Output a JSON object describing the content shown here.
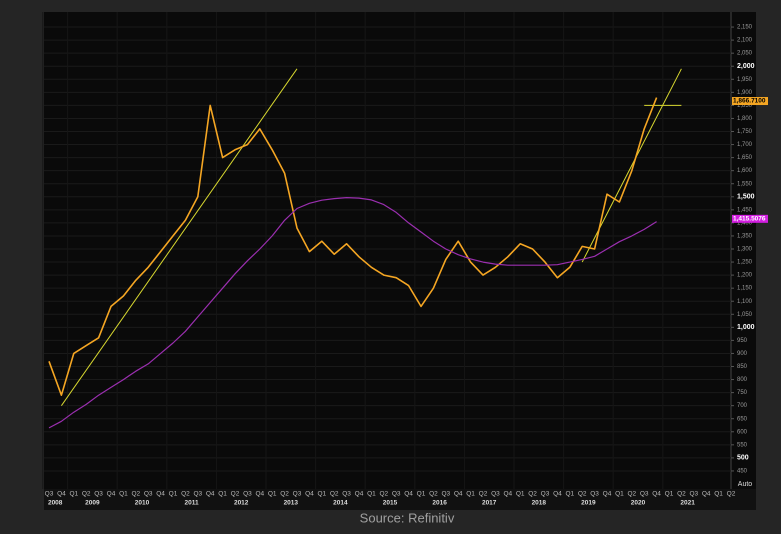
{
  "chart_data": {
    "type": "line",
    "source": "Source: Refinitiv",
    "axis_mode": "Auto",
    "categories": [
      "Q3",
      "Q4",
      "Q1",
      "Q2",
      "Q3",
      "Q4",
      "Q1",
      "Q2",
      "Q3",
      "Q4",
      "Q1",
      "Q2",
      "Q3",
      "Q4",
      "Q1",
      "Q2",
      "Q3",
      "Q4",
      "Q1",
      "Q2",
      "Q3",
      "Q4",
      "Q1",
      "Q2",
      "Q3",
      "Q4",
      "Q1",
      "Q2",
      "Q3",
      "Q4",
      "Q1",
      "Q2",
      "Q3",
      "Q4",
      "Q1",
      "Q2",
      "Q3",
      "Q4",
      "Q1",
      "Q2",
      "Q3",
      "Q4",
      "Q1",
      "Q2",
      "Q3",
      "Q4",
      "Q1",
      "Q2",
      "Q3",
      "Q4",
      "Q1",
      "Q2",
      "Q3",
      "Q4",
      "Q1",
      "Q2"
    ],
    "years": [
      "2008",
      "2009",
      "2010",
      "2011",
      "2012",
      "2013",
      "2014",
      "2015",
      "2016",
      "2017",
      "2018",
      "2019",
      "2020",
      "2021"
    ],
    "series": [
      {
        "color": "#f5a623",
        "width": 1.6,
        "label_fill": "#f5a623",
        "label_text": "#000000",
        "values": [
          870,
          740,
          900,
          930,
          960,
          1080,
          1120,
          1180,
          1230,
          1290,
          1350,
          1410,
          1500,
          1850,
          1650,
          1680,
          1700,
          1760,
          1680,
          1590,
          1380,
          1290,
          1330,
          1280,
          1320,
          1270,
          1230,
          1200,
          1190,
          1160,
          1080,
          1150,
          1260,
          1330,
          1250,
          1200,
          1230,
          1270,
          1320,
          1300,
          1250,
          1190,
          1230,
          1310,
          1300,
          1510,
          1480,
          1600,
          1760,
          1880,
          null,
          null,
          null,
          null,
          null,
          null
        ],
        "last_value": 1866.71,
        "last_value_label": "1,866.7100"
      },
      {
        "color": "#9b2fb0",
        "width": 1.2,
        "label_fill": "#d21ee0",
        "label_text": "#ffffff",
        "values": [
          615,
          640,
          675,
          705,
          740,
          770,
          800,
          832,
          860,
          900,
          940,
          985,
          1040,
          1095,
          1150,
          1205,
          1255,
          1300,
          1350,
          1410,
          1455,
          1475,
          1487,
          1493,
          1497,
          1495,
          1488,
          1470,
          1440,
          1400,
          1365,
          1330,
          1300,
          1278,
          1262,
          1250,
          1242,
          1238,
          1238,
          1238,
          1238,
          1240,
          1250,
          1260,
          1272,
          1300,
          1328,
          1350,
          1375,
          1405,
          null,
          null,
          null,
          null,
          null,
          null
        ],
        "last_value": 1415.5076,
        "last_value_label": "1,415.5076"
      }
    ],
    "trendlines": [
      {
        "color": "#d8d830",
        "x": [
          1,
          20
        ],
        "y": [
          700,
          1990
        ]
      },
      {
        "color": "#d8d830",
        "x": [
          43,
          51
        ],
        "y": [
          1250,
          1990
        ]
      },
      {
        "color": "#d8d830",
        "x": [
          48,
          51
        ],
        "y": [
          1850,
          1850
        ]
      }
    ],
    "ylim": [
      400,
      2200
    ],
    "yticks": [
      450,
      500,
      550,
      600,
      650,
      700,
      750,
      800,
      850,
      900,
      950,
      {
        "value": 1000,
        "label": "1,000"
      },
      {
        "value": 1050,
        "label": "1,050"
      },
      {
        "value": 1100,
        "label": "1,100"
      },
      {
        "value": 1150,
        "label": "1,150"
      },
      {
        "value": 1200,
        "label": "1,200"
      },
      {
        "value": 1250,
        "label": "1,250"
      },
      {
        "value": 1300,
        "label": "1,300"
      },
      {
        "value": 1350,
        "label": "1,350"
      },
      {
        "value": 1400,
        "label": "1,400"
      },
      {
        "value": 1450,
        "label": "1,450"
      },
      {
        "value": 1500,
        "label": "1,500"
      },
      {
        "value": 1550,
        "label": "1,550"
      },
      {
        "value": 1600,
        "label": "1,600"
      },
      {
        "value": 1650,
        "label": "1,650"
      },
      {
        "value": 1700,
        "label": "1,700"
      },
      {
        "value": 1750,
        "label": "1,750"
      },
      {
        "value": 1800,
        "label": "1,800"
      },
      {
        "value": 1850,
        "label": "1,850"
      },
      {
        "value": 1900,
        "label": "1,900"
      },
      {
        "value": 1950,
        "label": "1,950"
      },
      {
        "value": 2000,
        "label": "2,000"
      },
      {
        "value": 2050,
        "label": "2,050"
      },
      {
        "value": 2100,
        "label": "2,100"
      },
      {
        "value": 2150,
        "label": "2,150"
      }
    ],
    "grid": true
  }
}
